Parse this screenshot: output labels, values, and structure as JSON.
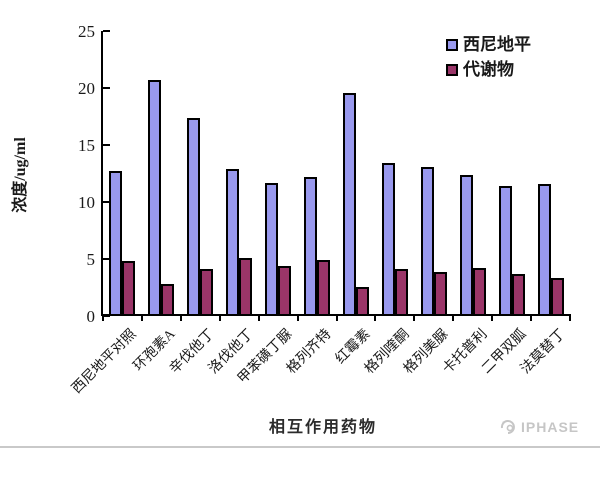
{
  "chart_data": {
    "type": "bar",
    "title": "",
    "xlabel": "相互作用药物",
    "ylabel": "浓度/ug/ml",
    "ylim": [
      0,
      25
    ],
    "yticks": [
      0,
      5,
      10,
      15,
      20,
      25
    ],
    "grid": false,
    "legend_position": "top-right-inside",
    "categories": [
      "西尼地平对照",
      "环孢素A",
      "辛伐他丁",
      "洛伐他丁",
      "甲苯磺丁脲",
      "格列齐特",
      "红霉素",
      "格列喹酮",
      "格列美脲",
      "卡托普利",
      "二甲双胍",
      "法莫替丁"
    ],
    "series": [
      {
        "name": "西尼地平",
        "color": "#9999EE",
        "values": [
          12.7,
          20.7,
          17.4,
          12.9,
          11.7,
          12.2,
          19.6,
          13.4,
          13.1,
          12.4,
          11.4,
          11.6
        ]
      },
      {
        "name": "代谢物",
        "color": "#9A3568",
        "values": [
          4.8,
          2.8,
          4.1,
          5.1,
          4.4,
          4.9,
          2.5,
          4.1,
          3.9,
          4.2,
          3.7,
          3.3
        ]
      }
    ]
  },
  "watermark": {
    "text": "IPHASE"
  },
  "colors": {
    "axis": "#000000",
    "bar_border": "#000000",
    "series1": "#9999EE",
    "series2": "#9A3568",
    "text": "#1a1a1a",
    "watermark": "#c6c6c6",
    "divider": "#c9c9c9"
  }
}
